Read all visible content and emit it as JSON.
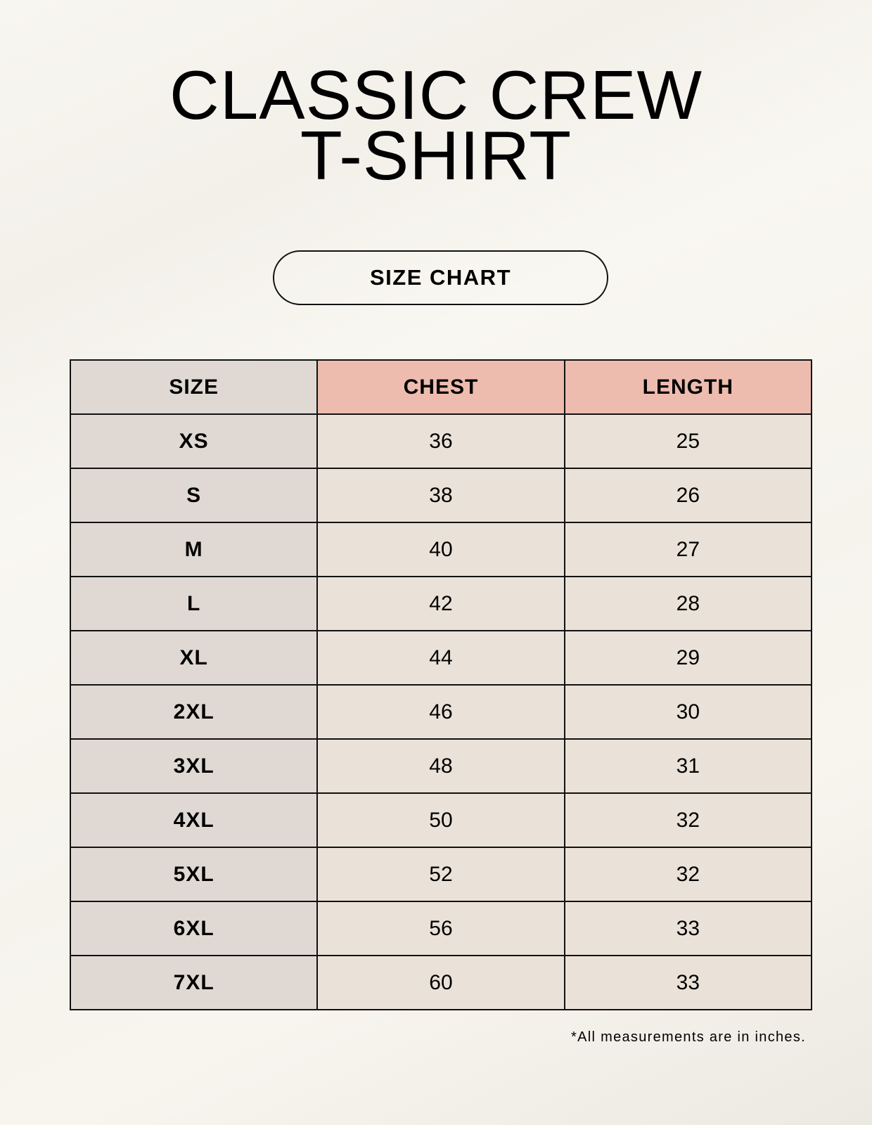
{
  "title": {
    "line1": "CLASSIC CREW",
    "line2": "T-SHIRT"
  },
  "badge": "SIZE CHART",
  "table": {
    "headers": [
      "SIZE",
      "CHEST",
      "LENGTH"
    ],
    "rows": [
      [
        "XS",
        "36",
        "25"
      ],
      [
        "S",
        "38",
        "26"
      ],
      [
        "M",
        "40",
        "27"
      ],
      [
        "L",
        "42",
        "28"
      ],
      [
        "XL",
        "44",
        "29"
      ],
      [
        "2XL",
        "46",
        "30"
      ],
      [
        "3XL",
        "48",
        "31"
      ],
      [
        "4XL",
        "50",
        "32"
      ],
      [
        "5XL",
        "52",
        "32"
      ],
      [
        "6XL",
        "56",
        "33"
      ],
      [
        "7XL",
        "60",
        "33"
      ]
    ]
  },
  "footnote": "*All measurements are in inches.",
  "colors": {
    "header_accent": "#edbcaf",
    "size_column": "#e0d9d3",
    "value_cells": "#eae2d8"
  }
}
